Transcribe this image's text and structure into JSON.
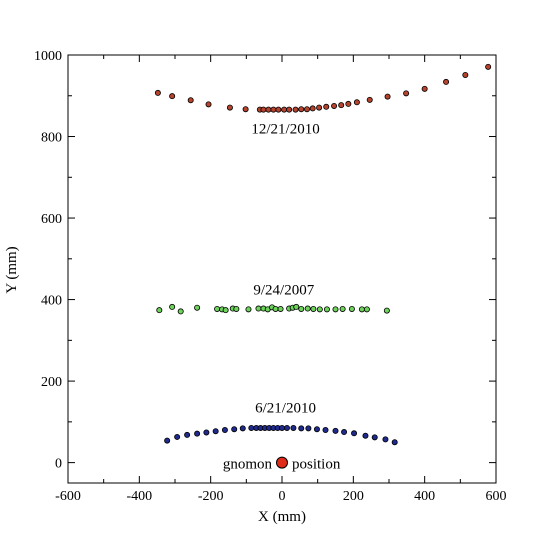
{
  "chart_data": {
    "type": "scatter",
    "title": "",
    "xlabel": "X (mm)",
    "ylabel": "Y (mm)",
    "xlim": [
      -600,
      600
    ],
    "ylim": [
      -50,
      1000
    ],
    "grid": false,
    "legend": "none",
    "x_ticks": [
      -600,
      -400,
      -200,
      0,
      200,
      400,
      600
    ],
    "y_ticks": [
      0,
      200,
      400,
      600,
      800,
      1000
    ],
    "x_tick_labels": [
      "-600",
      "-400",
      "-200",
      "0",
      "200",
      "400",
      "600"
    ],
    "y_tick_labels": [
      "0",
      "200",
      "400",
      "600",
      "800",
      "1000"
    ],
    "series": [
      {
        "color": "#b5432e",
        "label": "12/21/2010",
        "x": [
          -348,
          -308,
          -256,
          -206,
          -146,
          -102,
          -62,
          -52,
          -38,
          -24,
          -10,
          6,
          20,
          38,
          54,
          70,
          86,
          104,
          124,
          146,
          166,
          186,
          210,
          246,
          296,
          348,
          400,
          460,
          514,
          578
        ],
        "y": [
          907,
          899,
          889,
          879,
          871,
          867,
          866,
          866,
          866,
          866,
          866,
          866,
          866,
          866,
          867,
          867,
          869,
          871,
          873,
          875,
          877,
          880,
          884,
          890,
          898,
          906,
          917,
          934,
          951,
          971
        ]
      },
      {
        "color": "#6dd35b",
        "label": "9/24/2007",
        "x": [
          -344,
          -308,
          -284,
          -238,
          -182,
          -168,
          -158,
          -138,
          -128,
          -94,
          -66,
          -52,
          -40,
          -28,
          -18,
          -4,
          20,
          30,
          40,
          54,
          72,
          88,
          106,
          126,
          150,
          170,
          196,
          224,
          238,
          294
        ],
        "y": [
          374,
          382,
          371,
          380,
          377,
          376,
          374,
          378,
          377,
          376,
          378,
          378,
          376,
          381,
          377,
          377,
          378,
          380,
          382,
          377,
          378,
          377,
          376,
          376,
          376,
          377,
          377,
          376,
          376,
          373
        ]
      },
      {
        "color": "#1f2a8c",
        "label": "6/21/2010",
        "x": [
          -322,
          -294,
          -266,
          -238,
          -212,
          -186,
          -160,
          -134,
          -110,
          -86,
          -72,
          -60,
          -48,
          -36,
          -24,
          -12,
          0,
          14,
          32,
          54,
          74,
          98,
          122,
          150,
          174,
          202,
          234,
          260,
          290,
          316
        ],
        "y": [
          54,
          63,
          68,
          71,
          74,
          77,
          80,
          82,
          84,
          85,
          85,
          85,
          85,
          85,
          85,
          85,
          85,
          85,
          85,
          84,
          84,
          82,
          80,
          78,
          75,
          72,
          66,
          62,
          57,
          50
        ]
      }
    ],
    "gnomon": {
      "x": 0,
      "y": 0,
      "color": "#e02b1a",
      "label_left": "gnomon",
      "label_right": "position"
    },
    "annotations": [
      {
        "text": "12/21/2010",
        "x": 10,
        "y": 807
      },
      {
        "text": "9/24/2007",
        "x": 5,
        "y": 413
      },
      {
        "text": "6/21/2010",
        "x": 10,
        "y": 123
      }
    ]
  }
}
